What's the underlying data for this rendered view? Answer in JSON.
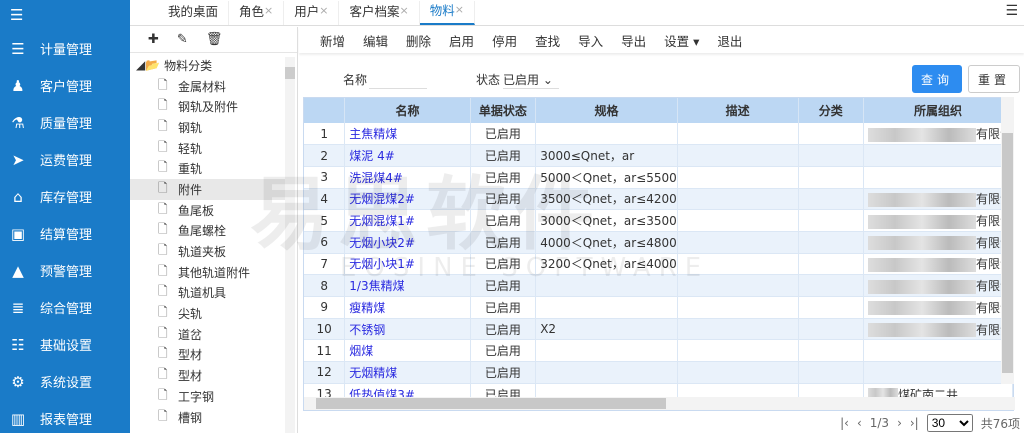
{
  "sidebar": {
    "items": [
      {
        "label": "计量管理",
        "icon": "list-icon"
      },
      {
        "label": "客户管理",
        "icon": "person-icon"
      },
      {
        "label": "质量管理",
        "icon": "flask-icon"
      },
      {
        "label": "运费管理",
        "icon": "send-icon"
      },
      {
        "label": "库存管理",
        "icon": "home-icon"
      },
      {
        "label": "结算管理",
        "icon": "money-icon"
      },
      {
        "label": "预警管理",
        "icon": "warning-icon"
      },
      {
        "label": "综合管理",
        "icon": "server-icon"
      },
      {
        "label": "基础设置",
        "icon": "database-icon"
      },
      {
        "label": "系统设置",
        "icon": "gears-icon"
      },
      {
        "label": "报表管理",
        "icon": "chart-icon"
      }
    ]
  },
  "tabs": [
    {
      "label": "我的桌面",
      "closable": false
    },
    {
      "label": "角色",
      "closable": true
    },
    {
      "label": "用户",
      "closable": true
    },
    {
      "label": "客户档案",
      "closable": true
    },
    {
      "label": "物料",
      "closable": true,
      "active": true
    }
  ],
  "tree": {
    "root": "物料分类",
    "items": [
      "金属材料",
      "钢轨及附件",
      "钢轨",
      "轻轨",
      "重轨",
      "附件",
      "鱼尾板",
      "鱼尾螺栓",
      "轨道夹板",
      "其他轨道附件",
      "轨道机具",
      "尖轨",
      "道岔",
      "型材",
      "型材",
      "工字钢",
      "槽钢"
    ],
    "selected": "附件"
  },
  "toolbar": [
    "新增",
    "编辑",
    "删除",
    "启用",
    "停用",
    "查找",
    "导入",
    "导出",
    "设置 ▾",
    "退出"
  ],
  "search": {
    "name_label": "名称",
    "name_value": "",
    "status_label": "状态",
    "status_value": "已启用",
    "query": "查询",
    "reset": "重置"
  },
  "table": {
    "headers": [
      "",
      "名称",
      "单据状态",
      "规格",
      "描述",
      "分类",
      "所属组织"
    ],
    "rows": [
      [
        "1",
        "主焦精煤",
        "已启用",
        "",
        "",
        "",
        "有限责"
      ],
      [
        "2",
        "煤泥 4#",
        "已启用",
        "3000≤Qnet，ar",
        "",
        "",
        ""
      ],
      [
        "3",
        "洗混煤4#",
        "已启用",
        "5000＜Qnet，ar≤5500",
        "",
        "",
        ""
      ],
      [
        "4",
        "无烟混煤2#",
        "已启用",
        "3500＜Qnet，ar≤4200",
        "",
        "",
        "有限责"
      ],
      [
        "5",
        "无烟混煤1#",
        "已启用",
        "3000＜Qnet，ar≤3500",
        "",
        "",
        "有限责"
      ],
      [
        "6",
        "无烟小块2#",
        "已启用",
        "4000＜Qnet，ar≤4800",
        "",
        "",
        "有限责"
      ],
      [
        "7",
        "无烟小块1#",
        "已启用",
        "3200＜Qnet，ar≤4000",
        "",
        "",
        "有限责"
      ],
      [
        "8",
        "1/3焦精煤",
        "已启用",
        "",
        "",
        "",
        "有限责"
      ],
      [
        "9",
        "瘦精煤",
        "已启用",
        "",
        "",
        "",
        "有限责"
      ],
      [
        "10",
        "不锈钢",
        "已启用",
        "X2",
        "",
        "",
        "有限责"
      ],
      [
        "11",
        "烟煤",
        "已启用",
        "",
        "",
        "",
        ""
      ],
      [
        "12",
        "无烟精煤",
        "已启用",
        "",
        "",
        "",
        ""
      ],
      [
        "13",
        "低热值煤3#",
        "已启用",
        "",
        "",
        "",
        "煤矿南二井"
      ]
    ]
  },
  "pager": {
    "page": "1/3",
    "page_size": "30",
    "total": "共76项"
  },
  "watermark": {
    "cn": "易思软件",
    "en": "EOSINE SOFTWARE"
  }
}
